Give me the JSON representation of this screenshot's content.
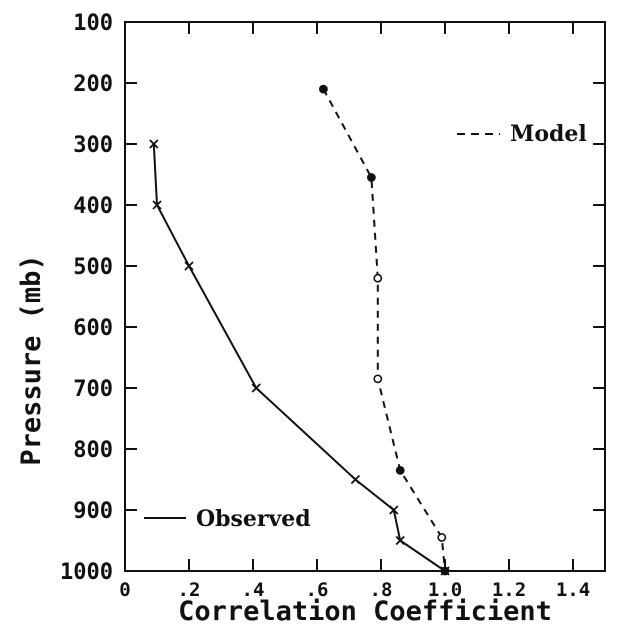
{
  "chart_data": {
    "type": "line",
    "title": "",
    "xlabel": "Correlation Coefficient",
    "ylabel": "Pressure (mb)",
    "xlim": [
      0,
      1.5
    ],
    "ylim": [
      1000,
      100
    ],
    "y_inverted": true,
    "xticks": [
      0,
      0.2,
      0.4,
      0.6,
      0.8,
      1.0,
      1.2,
      1.4
    ],
    "xtick_labels": [
      "0",
      ".2",
      ".4",
      ".6",
      ".8",
      "1.0",
      "1.2",
      "1.4"
    ],
    "yticks": [
      100,
      200,
      300,
      400,
      500,
      600,
      700,
      800,
      900,
      1000
    ],
    "ytick_labels": [
      "100",
      "200",
      "300",
      "400",
      "500",
      "600",
      "700",
      "800",
      "900",
      "1000"
    ],
    "grid": false,
    "series": [
      {
        "name": "Model",
        "style": "dashed",
        "marker": "circle",
        "x": [
          0.62,
          0.77,
          0.79,
          0.79,
          0.86,
          0.99,
          1.0
        ],
        "y": [
          210,
          355,
          520,
          685,
          835,
          945,
          1000
        ]
      },
      {
        "name": "Observed",
        "style": "solid",
        "marker": "cross",
        "x": [
          0.09,
          0.1,
          0.2,
          0.41,
          0.72,
          0.84,
          0.86,
          1.0
        ],
        "y": [
          300,
          400,
          500,
          700,
          850,
          900,
          950,
          1000
        ]
      }
    ],
    "legend": [
      {
        "label": "Model",
        "style": "dashed",
        "placement": "top-right"
      },
      {
        "label": "Observed",
        "style": "solid",
        "placement": "bottom-left"
      }
    ],
    "colors": {
      "axis": "#111111",
      "line": "#111111"
    }
  }
}
